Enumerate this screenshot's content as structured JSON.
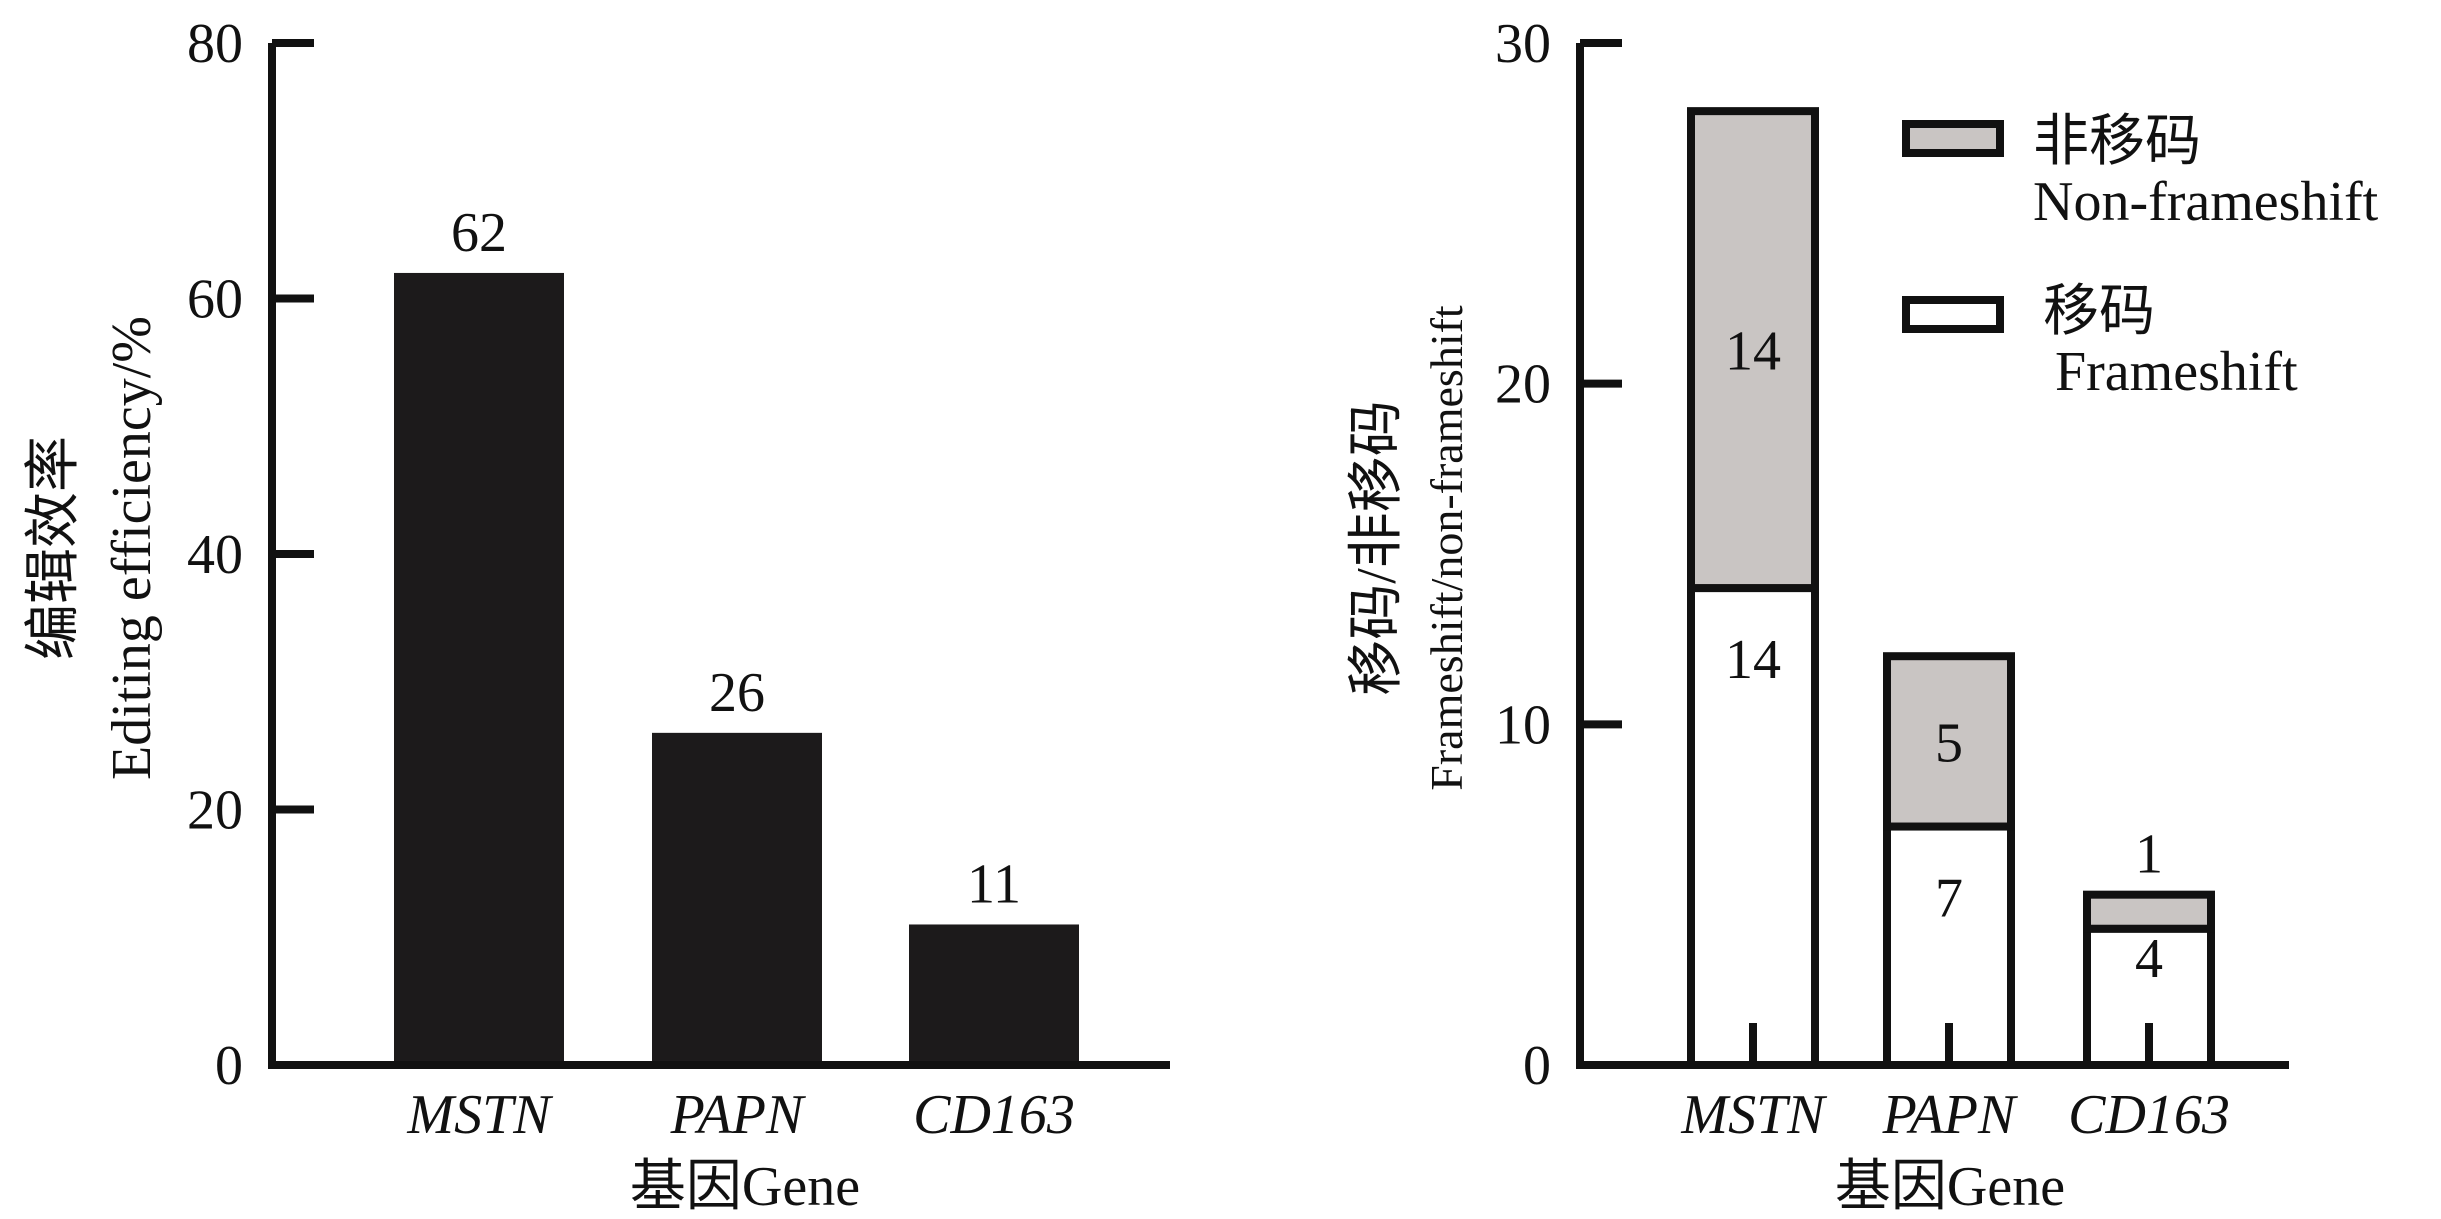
{
  "chart_data": [
    {
      "type": "bar",
      "title": "",
      "categories": [
        "MSTN",
        "PAPN",
        "CD163"
      ],
      "values": [
        62,
        26,
        11
      ],
      "data_labels": [
        "62",
        "26",
        "11"
      ],
      "xlabel": "基因Gene",
      "ylabel_zh": "编辑效率",
      "ylabel_en": "Editing efficiency/%",
      "ylim": [
        0,
        80
      ],
      "yticks": [
        0,
        20,
        40,
        60,
        80
      ],
      "bar_color": "#1c1a1b",
      "grid": false
    },
    {
      "type": "stacked-bar",
      "title": "",
      "categories": [
        "MSTN",
        "PAPN",
        "CD163"
      ],
      "series": [
        {
          "name_zh": "移码",
          "name_en": "Frameshift",
          "values": [
            14,
            7,
            4
          ],
          "labels": [
            "14",
            "7",
            "4"
          ],
          "color": "#ffffff"
        },
        {
          "name_zh": "非移码",
          "name_en": "Non-frameshift",
          "values": [
            14,
            5,
            1
          ],
          "labels": [
            "14",
            "5",
            "1"
          ],
          "color": "#c9c5c3"
        }
      ],
      "xlabel": "基因Gene",
      "ylabel_zh": "移码/非移码",
      "ylabel_en": "Frameshift/non-frameshift",
      "ylim": [
        0,
        30
      ],
      "yticks": [
        0,
        10,
        20,
        30
      ],
      "legend_position": "top-right",
      "grid": false
    }
  ]
}
